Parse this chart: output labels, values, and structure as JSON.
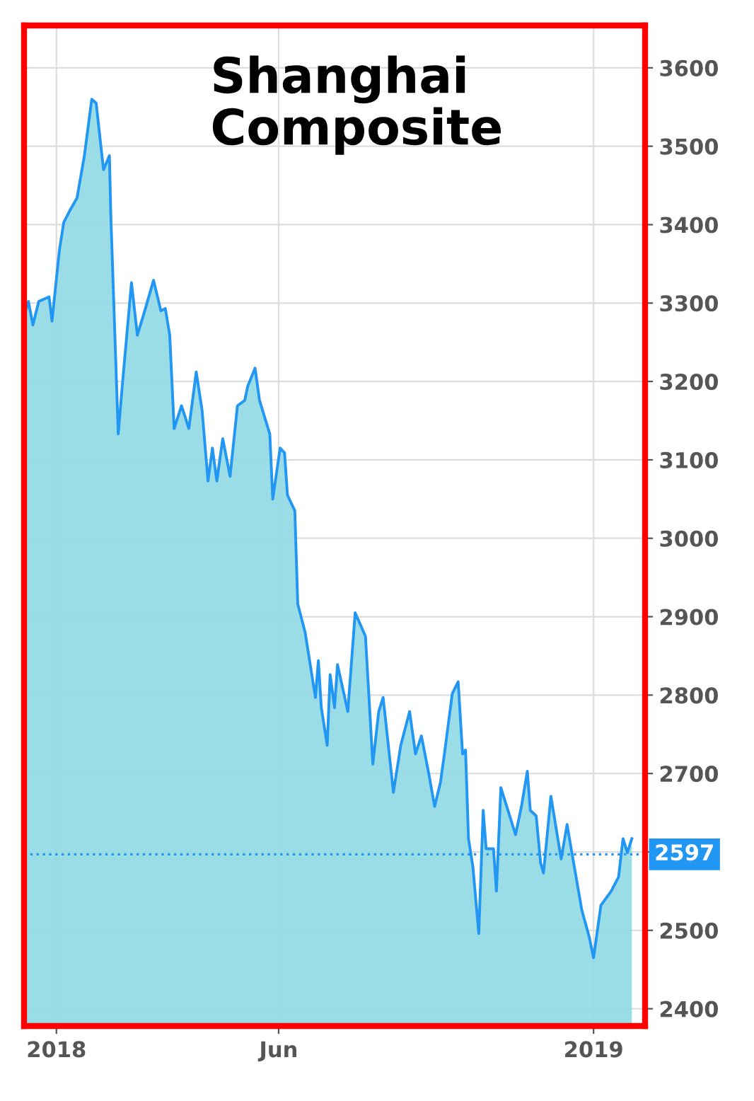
{
  "chart_data": {
    "type": "area",
    "title": "Shanghai Composite",
    "x": [
      "2017-12-11",
      "2017-12-13",
      "2017-12-16",
      "2017-12-20",
      "2017-12-27",
      "2017-12-29",
      "2018-01-03",
      "2018-01-06",
      "2018-01-11",
      "2018-01-15",
      "2018-01-20",
      "2018-01-25",
      "2018-01-28",
      "2018-02-02",
      "2018-02-06",
      "2018-02-07",
      "2018-02-12",
      "2018-02-15",
      "2018-02-21",
      "2018-02-25",
      "2018-03-02",
      "2018-03-08",
      "2018-03-13",
      "2018-03-16",
      "2018-03-19",
      "2018-03-22",
      "2018-03-27",
      "2018-04-01",
      "2018-04-06",
      "2018-04-10",
      "2018-04-14",
      "2018-04-17",
      "2018-04-20",
      "2018-04-24",
      "2018-04-29",
      "2018-05-04",
      "2018-05-09",
      "2018-05-11",
      "2018-05-16",
      "2018-05-19",
      "2018-05-26",
      "2018-05-28",
      "2018-06-02",
      "2018-06-05",
      "2018-06-07",
      "2018-06-12",
      "2018-06-14",
      "2018-06-19",
      "2018-06-26",
      "2018-06-28",
      "2018-06-30",
      "2018-07-04",
      "2018-07-06",
      "2018-07-09",
      "2018-07-11",
      "2018-07-18",
      "2018-07-23",
      "2018-07-30",
      "2018-08-04",
      "2018-08-08",
      "2018-08-11",
      "2018-08-18",
      "2018-08-23",
      "2018-08-29",
      "2018-09-02",
      "2018-09-06",
      "2018-09-11",
      "2018-09-15",
      "2018-09-19",
      "2018-09-22",
      "2018-09-27",
      "2018-10-01",
      "2018-10-04",
      "2018-10-06",
      "2018-10-08",
      "2018-10-11",
      "2018-10-15",
      "2018-10-18",
      "2018-10-20",
      "2018-10-25",
      "2018-10-27",
      "2018-10-30",
      "2018-11-09",
      "2018-11-13",
      "2018-11-17",
      "2018-11-19",
      "2018-11-23",
      "2018-11-26",
      "2018-11-28",
      "2018-12-03",
      "2018-12-10",
      "2018-12-14",
      "2018-12-18",
      "2018-12-24",
      "2018-12-29",
      "2019-01-01",
      "2019-01-06",
      "2019-01-13",
      "2019-01-18",
      "2019-01-21",
      "2019-01-24",
      "2019-01-27"
    ],
    "series": [
      {
        "color": "#2196f3",
        "values": [
          3290,
          3302,
          3272,
          3302,
          3308,
          3277,
          3367,
          3403,
          3421,
          3434,
          3488,
          3560,
          3555,
          3470,
          3488,
          3410,
          3133,
          3200,
          3326,
          3259,
          3290,
          3329,
          3290,
          3293,
          3259,
          3140,
          3169,
          3140,
          3212,
          3163,
          3073,
          3115,
          3073,
          3127,
          3079,
          3169,
          3176,
          3194,
          3217,
          3176,
          3133,
          3050,
          3115,
          3109,
          3055,
          3035,
          2916,
          2880,
          2797,
          2844,
          2784,
          2736,
          2826,
          2784,
          2839,
          2779,
          2905,
          2875,
          2712,
          2779,
          2797,
          2676,
          2736,
          2779,
          2725,
          2748,
          2700,
          2658,
          2689,
          2730,
          2802,
          2817,
          2725,
          2730,
          2617,
          2581,
          2496,
          2653,
          2604,
          2604,
          2550,
          2682,
          2622,
          2658,
          2703,
          2653,
          2646,
          2586,
          2573,
          2671,
          2591,
          2635,
          2591,
          2526,
          2492,
          2465,
          2532,
          2550,
          2568,
          2617,
          2599,
          2617
        ]
      }
    ],
    "xlim": [
      "2017-12-10",
      "2019-02-05"
    ],
    "xticks": [
      {
        "value": "2018-01-01",
        "label": "2018"
      },
      {
        "value": "2018-06-01",
        "label": "Jun"
      },
      {
        "value": "2019-01-01",
        "label": "2019"
      }
    ],
    "ylim": [
      2378,
      3654
    ],
    "yticks": [
      2400,
      2500,
      {
        "value": 2600,
        "label": null
      },
      2700,
      2800,
      2900,
      3000,
      3100,
      3200,
      3300,
      3400,
      3500,
      3600
    ],
    "ref_lines": [
      {
        "axis": "y",
        "value": 2597,
        "label": "2597",
        "color": "#2196f3",
        "line_style": "dotted"
      }
    ],
    "grid": true,
    "legend": false
  }
}
